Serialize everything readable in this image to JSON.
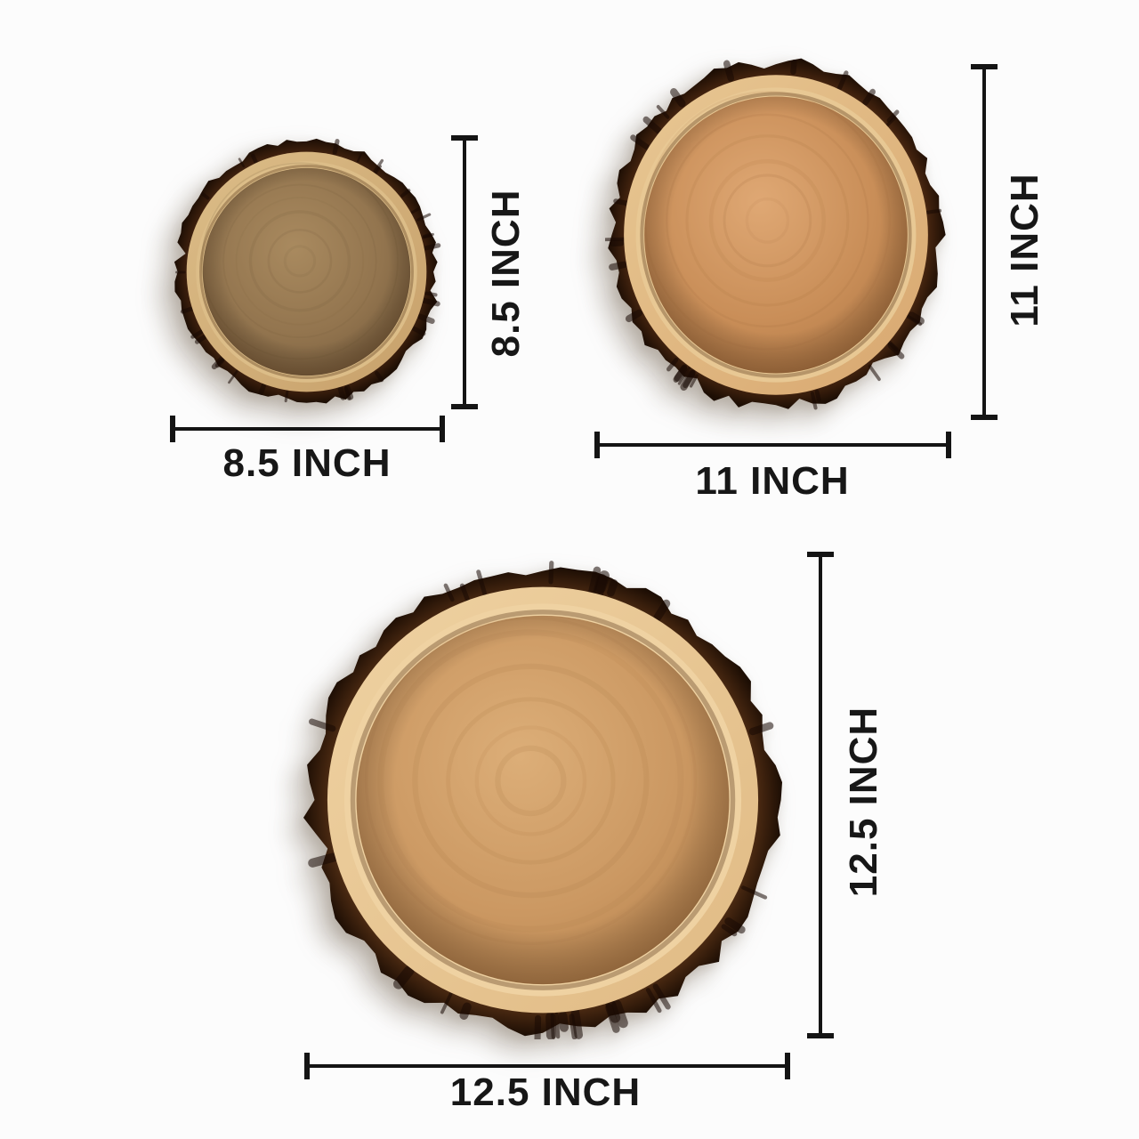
{
  "page": {
    "background": "#fcfcfc",
    "annotation_line_color": "#141414",
    "annotation_text_color": "#171717"
  },
  "products": [
    {
      "id": "wood-tray-small",
      "width_label": "8.5 INCH",
      "height_label": "8.5 INCH",
      "colors": {
        "bark": "#3c1f0d",
        "bark_light": "#7c4a22",
        "sapwood": "#c7a06a",
        "rim": "#dcbd88",
        "interior_light": "#a98a5f",
        "interior": "#92744e",
        "interior_dark": "#6f5638"
      }
    },
    {
      "id": "wood-tray-medium",
      "width_label": "11 INCH",
      "height_label": "11 INCH",
      "colors": {
        "bark": "#41220e",
        "bark_light": "#82512a",
        "sapwood": "#d8a76f",
        "rim": "#e8c894",
        "interior_light": "#dfa874",
        "interior": "#c98e58",
        "interior_dark": "#a9713f"
      }
    },
    {
      "id": "wood-tray-large",
      "width_label": "12.5 INCH",
      "height_label": "12.5 INCH",
      "colors": {
        "bark": "#452610",
        "bark_light": "#7e4e27",
        "sapwood": "#e0ba84",
        "rim": "#efd2a2",
        "interior_light": "#dcae78",
        "interior": "#cb9862",
        "interior_dark": "#ae7a46"
      }
    }
  ]
}
